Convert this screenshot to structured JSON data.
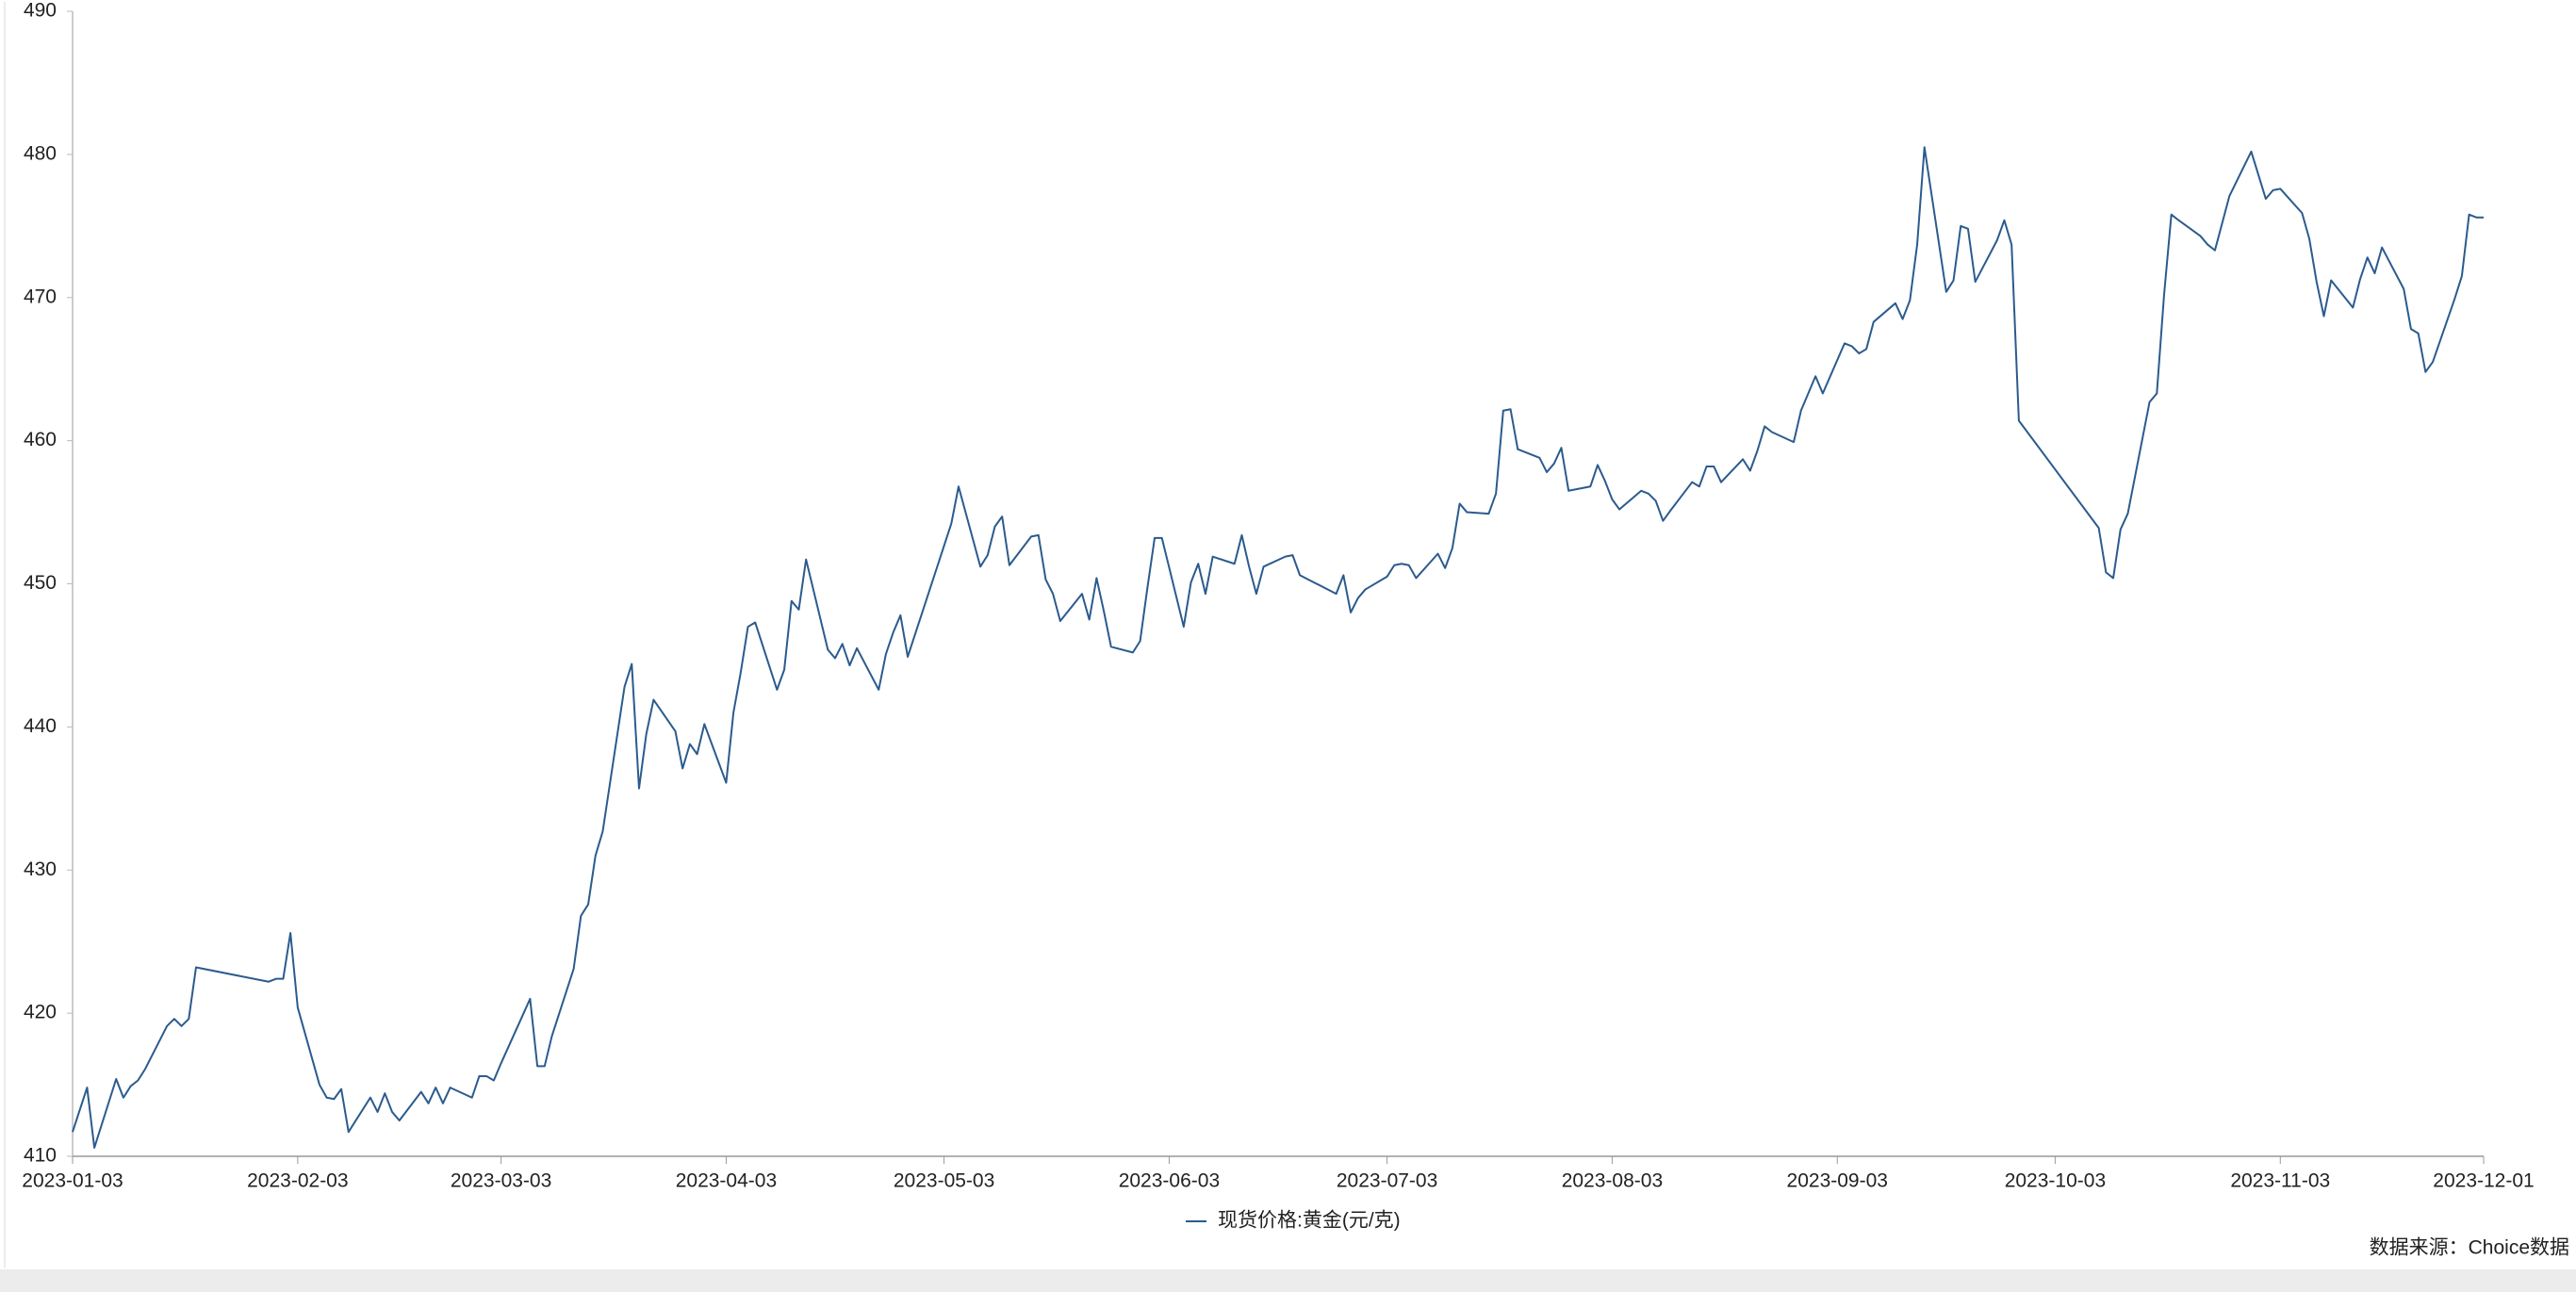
{
  "chart_data": {
    "type": "line",
    "x": [
      "2023-01-03",
      "2023-01-05",
      "2023-01-06",
      "2023-01-09",
      "2023-01-10",
      "2023-01-11",
      "2023-01-12",
      "2023-01-13",
      "2023-01-16",
      "2023-01-17",
      "2023-01-18",
      "2023-01-19",
      "2023-01-20",
      "2023-01-30",
      "2023-01-31",
      "2023-02-01",
      "2023-02-02",
      "2023-02-03",
      "2023-02-06",
      "2023-02-07",
      "2023-02-08",
      "2023-02-09",
      "2023-02-10",
      "2023-02-13",
      "2023-02-14",
      "2023-02-15",
      "2023-02-16",
      "2023-02-17",
      "2023-02-20",
      "2023-02-21",
      "2023-02-22",
      "2023-02-23",
      "2023-02-24",
      "2023-02-27",
      "2023-02-28",
      "2023-03-01",
      "2023-03-02",
      "2023-03-03",
      "2023-03-07",
      "2023-03-08",
      "2023-03-09",
      "2023-03-10",
      "2023-03-13",
      "2023-03-14",
      "2023-03-15",
      "2023-03-16",
      "2023-03-17",
      "2023-03-20",
      "2023-03-21",
      "2023-03-22",
      "2023-03-23",
      "2023-03-24",
      "2023-03-27",
      "2023-03-28",
      "2023-03-29",
      "2023-03-30",
      "2023-03-31",
      "2023-04-03",
      "2023-04-04",
      "2023-04-05",
      "2023-04-06",
      "2023-04-07",
      "2023-04-10",
      "2023-04-11",
      "2023-04-12",
      "2023-04-13",
      "2023-04-14",
      "2023-04-17",
      "2023-04-18",
      "2023-04-19",
      "2023-04-20",
      "2023-04-21",
      "2023-04-24",
      "2023-04-25",
      "2023-04-26",
      "2023-04-27",
      "2023-04-28",
      "2023-05-04",
      "2023-05-05",
      "2023-05-08",
      "2023-05-09",
      "2023-05-10",
      "2023-05-11",
      "2023-05-12",
      "2023-05-15",
      "2023-05-16",
      "2023-05-17",
      "2023-05-18",
      "2023-05-19",
      "2023-05-22",
      "2023-05-23",
      "2023-05-24",
      "2023-05-25",
      "2023-05-26",
      "2023-05-29",
      "2023-05-30",
      "2023-05-31",
      "2023-06-01",
      "2023-06-02",
      "2023-06-05",
      "2023-06-06",
      "2023-06-07",
      "2023-06-08",
      "2023-06-09",
      "2023-06-12",
      "2023-06-13",
      "2023-06-14",
      "2023-06-15",
      "2023-06-16",
      "2023-06-19",
      "2023-06-20",
      "2023-06-21",
      "2023-06-26",
      "2023-06-27",
      "2023-06-28",
      "2023-06-29",
      "2023-06-30",
      "2023-07-03",
      "2023-07-04",
      "2023-07-05",
      "2023-07-06",
      "2023-07-07",
      "2023-07-10",
      "2023-07-11",
      "2023-07-12",
      "2023-07-13",
      "2023-07-14",
      "2023-07-17",
      "2023-07-18",
      "2023-07-19",
      "2023-07-20",
      "2023-07-21",
      "2023-07-24",
      "2023-07-25",
      "2023-07-26",
      "2023-07-27",
      "2023-07-28",
      "2023-07-31",
      "2023-08-01",
      "2023-08-02",
      "2023-08-03",
      "2023-08-04",
      "2023-08-07",
      "2023-08-08",
      "2023-08-09",
      "2023-08-10",
      "2023-08-11",
      "2023-08-14",
      "2023-08-15",
      "2023-08-16",
      "2023-08-17",
      "2023-08-18",
      "2023-08-21",
      "2023-08-22",
      "2023-08-23",
      "2023-08-24",
      "2023-08-25",
      "2023-08-28",
      "2023-08-29",
      "2023-08-30",
      "2023-08-31",
      "2023-09-01",
      "2023-09-04",
      "2023-09-05",
      "2023-09-06",
      "2023-09-07",
      "2023-09-08",
      "2023-09-11",
      "2023-09-12",
      "2023-09-13",
      "2023-09-14",
      "2023-09-15",
      "2023-09-18",
      "2023-09-19",
      "2023-09-20",
      "2023-09-21",
      "2023-09-22",
      "2023-09-25",
      "2023-09-26",
      "2023-09-27",
      "2023-09-28",
      "2023-10-09",
      "2023-10-10",
      "2023-10-11",
      "2023-10-12",
      "2023-10-13",
      "2023-10-16",
      "2023-10-17",
      "2023-10-18",
      "2023-10-19",
      "2023-10-20",
      "2023-10-23",
      "2023-10-24",
      "2023-10-25",
      "2023-10-26",
      "2023-10-27",
      "2023-10-30",
      "2023-11-01",
      "2023-11-02",
      "2023-11-03",
      "2023-11-06",
      "2023-11-07",
      "2023-11-08",
      "2023-11-09",
      "2023-11-10",
      "2023-11-13",
      "2023-11-14",
      "2023-11-15",
      "2023-11-16",
      "2023-11-17",
      "2023-11-20",
      "2023-11-21",
      "2023-11-22",
      "2023-11-23",
      "2023-11-24",
      "2023-11-27",
      "2023-11-28",
      "2023-11-29",
      "2023-11-30",
      "2023-12-01"
    ],
    "series": [
      {
        "name": "现货价格:黄金(元/克)",
        "color": "#2b5b8e",
        "values": [
          411.7,
          414.8,
          410.6,
          415.4,
          414.1,
          414.9,
          415.3,
          416.1,
          419.1,
          419.6,
          419.1,
          419.6,
          423.2,
          422.2,
          422.4,
          422.4,
          425.6,
          420.4,
          415,
          414.1,
          414,
          414.7,
          411.7,
          414.1,
          413.1,
          414.4,
          413.1,
          412.5,
          414.5,
          413.7,
          414.8,
          413.7,
          414.8,
          414.1,
          415.6,
          415.6,
          415.3,
          416.5,
          421,
          416.3,
          416.3,
          418.4,
          423.1,
          426.8,
          427.6,
          431,
          432.7,
          442.8,
          444.4,
          435.7,
          439.5,
          441.9,
          439.7,
          437.1,
          438.8,
          438.1,
          440.2,
          436.1,
          441,
          443.8,
          447,
          447.3,
          442.6,
          444,
          448.8,
          448.2,
          451.7,
          445.4,
          444.8,
          445.8,
          444.3,
          445.5,
          442.6,
          445.1,
          446.6,
          447.8,
          444.9,
          454.2,
          456.8,
          451.2,
          452,
          454,
          454.7,
          451.3,
          453.3,
          453.4,
          450.3,
          449.3,
          447.4,
          449.3,
          447.5,
          450.4,
          448.1,
          445.6,
          445.2,
          446,
          449.7,
          453.2,
          453.2,
          447,
          450.1,
          451.4,
          449.3,
          451.9,
          451.4,
          453.4,
          451.2,
          449.3,
          451.2,
          451.9,
          452,
          450.6,
          449.3,
          450.6,
          448,
          449,
          449.6,
          450.5,
          451.3,
          451.4,
          451.3,
          450.4,
          452.1,
          451.1,
          452.5,
          455.6,
          455,
          454.9,
          456.3,
          462.1,
          462.2,
          459.4,
          458.8,
          457.8,
          458.4,
          459.5,
          456.5,
          456.8,
          458.3,
          457.2,
          455.9,
          455.2,
          456.5,
          456.3,
          455.8,
          454.4,
          455.1,
          457.1,
          456.8,
          458.2,
          458.2,
          457.1,
          458.7,
          457.9,
          459.3,
          461,
          460.6,
          459.9,
          462.1,
          463.3,
          464.5,
          463.3,
          466.8,
          466.6,
          466.1,
          466.4,
          468.3,
          469.6,
          468.5,
          469.8,
          473.7,
          480.5,
          470.4,
          471.2,
          475,
          474.8,
          471.1,
          474,
          475.4,
          473.7,
          461.4,
          453.9,
          450.8,
          450.4,
          453.8,
          454.9,
          462.7,
          463.3,
          470.2,
          475.8,
          475.4,
          474.3,
          473.7,
          473.3,
          475.2,
          477.1,
          480.2,
          476.9,
          477.5,
          477.6,
          475.9,
          474.1,
          471.1,
          468.7,
          471.2,
          469.3,
          471.3,
          472.8,
          471.7,
          473.5,
          470.6,
          467.8,
          467.5,
          464.8,
          465.5,
          469.9,
          471.5,
          475.8,
          475.6,
          475.6
        ]
      }
    ],
    "xlim": [
      "2023-01-03",
      "2023-12-01"
    ],
    "xticks": [
      "2023-01-03",
      "2023-02-03",
      "2023-03-03",
      "2023-04-03",
      "2023-05-03",
      "2023-06-03",
      "2023-07-03",
      "2023-08-03",
      "2023-09-03",
      "2023-10-03",
      "2023-11-03",
      "2023-12-01"
    ],
    "ylim": [
      410,
      490
    ],
    "yticks": [
      410,
      420,
      430,
      440,
      450,
      460,
      470,
      480,
      490
    ],
    "legend": "bottom",
    "source": "数据来源：Choice数据"
  }
}
